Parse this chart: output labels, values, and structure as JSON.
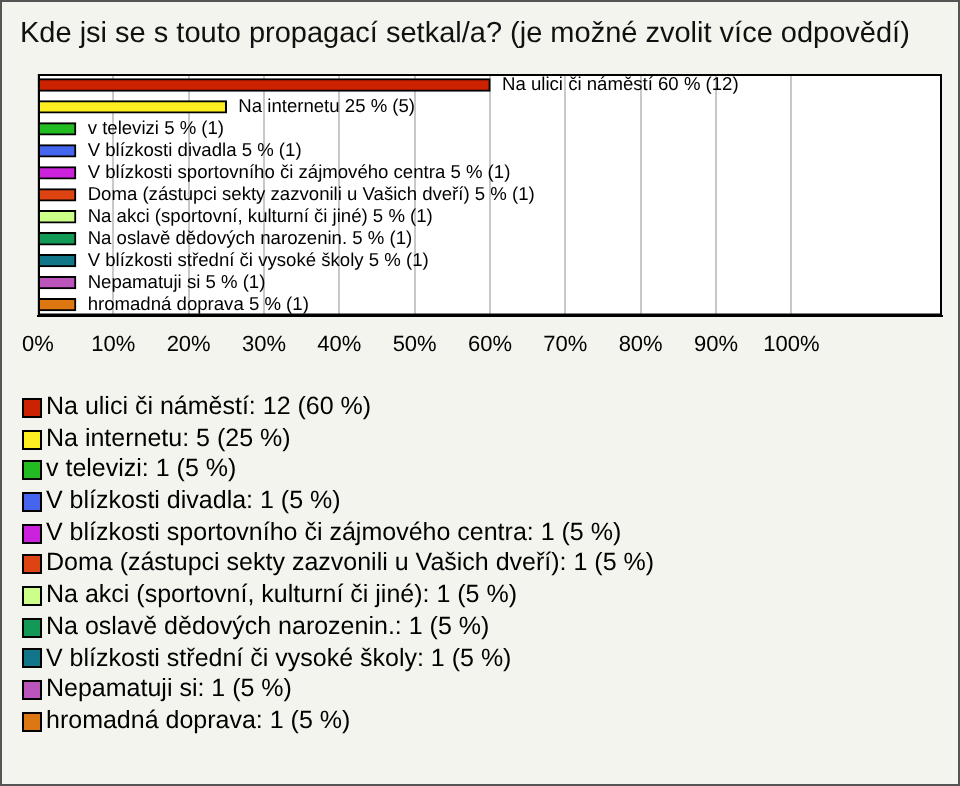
{
  "chart_data": {
    "type": "bar",
    "orientation": "horizontal",
    "title": "Kde jsi se s touto propagací setkal/a? (je možné zvolit více odpovědí)",
    "categories": [
      null,
      null,
      null,
      null,
      null,
      null,
      null,
      null,
      null,
      null,
      null
    ],
    "values": [
      60,
      25,
      5,
      5,
      5,
      5,
      5,
      5,
      5,
      5,
      5
    ],
    "colors": [
      "#cc2200",
      "#ffee22",
      "#22bb22",
      "#4466ee",
      "#cc22dd",
      "#dd4411",
      "#ccff88",
      "#119955",
      "#117788",
      "#bb55bb",
      "#dd7711"
    ],
    "value_labels": [
      "Na ulici či náměstí 60 % (12)",
      "Na internetu 25 % (5)",
      "v televizi 5 % (1)",
      "V blízkosti divadla 5 % (1)",
      "V blízkosti sportovního či zájmového centra 5 % (1)",
      "Doma (zástupci sekty zazvonili u Vašich dveří) 5 % (1)",
      "Na akci (sportovní, kulturní či jiné) 5 % (1)",
      "Na oslavě dědových narozenin. 5 % (1)",
      "V blízkosti střední či vysoké školy 5 % (1)",
      "Nepamatuji si 5 % (1)",
      "hromadná doprava 5 % (1)"
    ],
    "annotations": [
      "Na ulici či náměstí: 12 (60 %)",
      "Na internetu: 5 (25 %)",
      "v televizi: 1 (5 %)",
      "V blízkosti divadla: 1 (5 %)",
      "V blízkosti sportovního či zájmového centra: 1 (5 %)",
      "Doma (zástupci sekty zazvonili u Vašich dveří): 1 (5 %)",
      "Na akci (sportovní, kulturní či jiné): 1 (5 %)",
      "Na oslavě dědových narozenin.: 1 (5 %)",
      "V blízkosti střední či vysoké školy: 1 (5 %)",
      "Nepamatuji si: 1 (5 %)",
      "hromadná doprava: 1 (5 %)"
    ],
    "xlim": [
      0,
      120
    ],
    "xticks": [
      {
        "value": 0,
        "label": "0%"
      },
      {
        "value": 10,
        "label": "10%"
      },
      {
        "value": 20,
        "label": "20%"
      },
      {
        "value": 30,
        "label": "30%"
      },
      {
        "value": 40,
        "label": "40%"
      },
      {
        "value": 50,
        "label": "50%"
      },
      {
        "value": 60,
        "label": "60%"
      },
      {
        "value": 70,
        "label": "70%"
      },
      {
        "value": 80,
        "label": "80%"
      },
      {
        "value": 90,
        "label": "90%"
      },
      {
        "value": 100,
        "label": "100%"
      }
    ],
    "grid": "x"
  }
}
